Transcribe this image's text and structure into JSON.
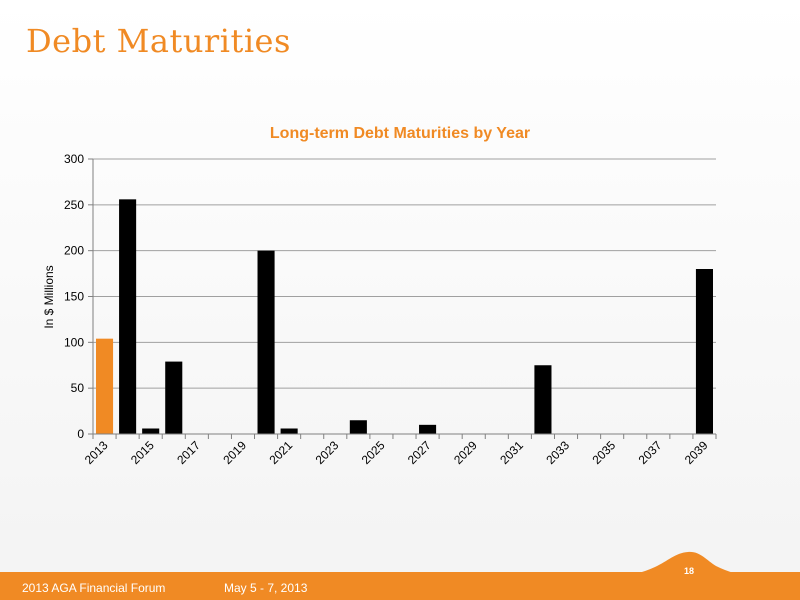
{
  "slide": {
    "title": "Debt Maturities",
    "footer_event": "2013 AGA Financial Forum",
    "footer_date": "May 5 - 7, 2013",
    "page_number": "18"
  },
  "colors": {
    "accent": "#f08a24",
    "bar_black": "#000000",
    "grid": "#a0a0a0"
  },
  "chart_data": {
    "type": "bar",
    "title": "Long-term Debt Maturities by Year",
    "xlabel": "",
    "ylabel": "In $ Millions",
    "ylim": [
      0,
      300
    ],
    "yticks": [
      0,
      50,
      100,
      150,
      200,
      250,
      300
    ],
    "grid": true,
    "categories": [
      "2013",
      "2014",
      "2015",
      "2016",
      "2017",
      "2018",
      "2019",
      "2020",
      "2021",
      "2022",
      "2023",
      "2024",
      "2025",
      "2026",
      "2027",
      "2028",
      "2029",
      "2030",
      "2031",
      "2032",
      "2033",
      "2034",
      "2035",
      "2036",
      "2037",
      "2038",
      "2039"
    ],
    "x_tick_labels": [
      "2013",
      "2015",
      "2017",
      "2019",
      "2021",
      "2023",
      "2025",
      "2027",
      "2029",
      "2031",
      "2033",
      "2035",
      "2037",
      "2039"
    ],
    "values": [
      104,
      256,
      6,
      79,
      0,
      0,
      0,
      200,
      6,
      0,
      0,
      15,
      0,
      0,
      10,
      0,
      0,
      0,
      0,
      75,
      0,
      0,
      0,
      0,
      0,
      0,
      180
    ],
    "highlight_category": "2013",
    "highlight_color": "#f08a24",
    "bar_color": "#000000"
  }
}
